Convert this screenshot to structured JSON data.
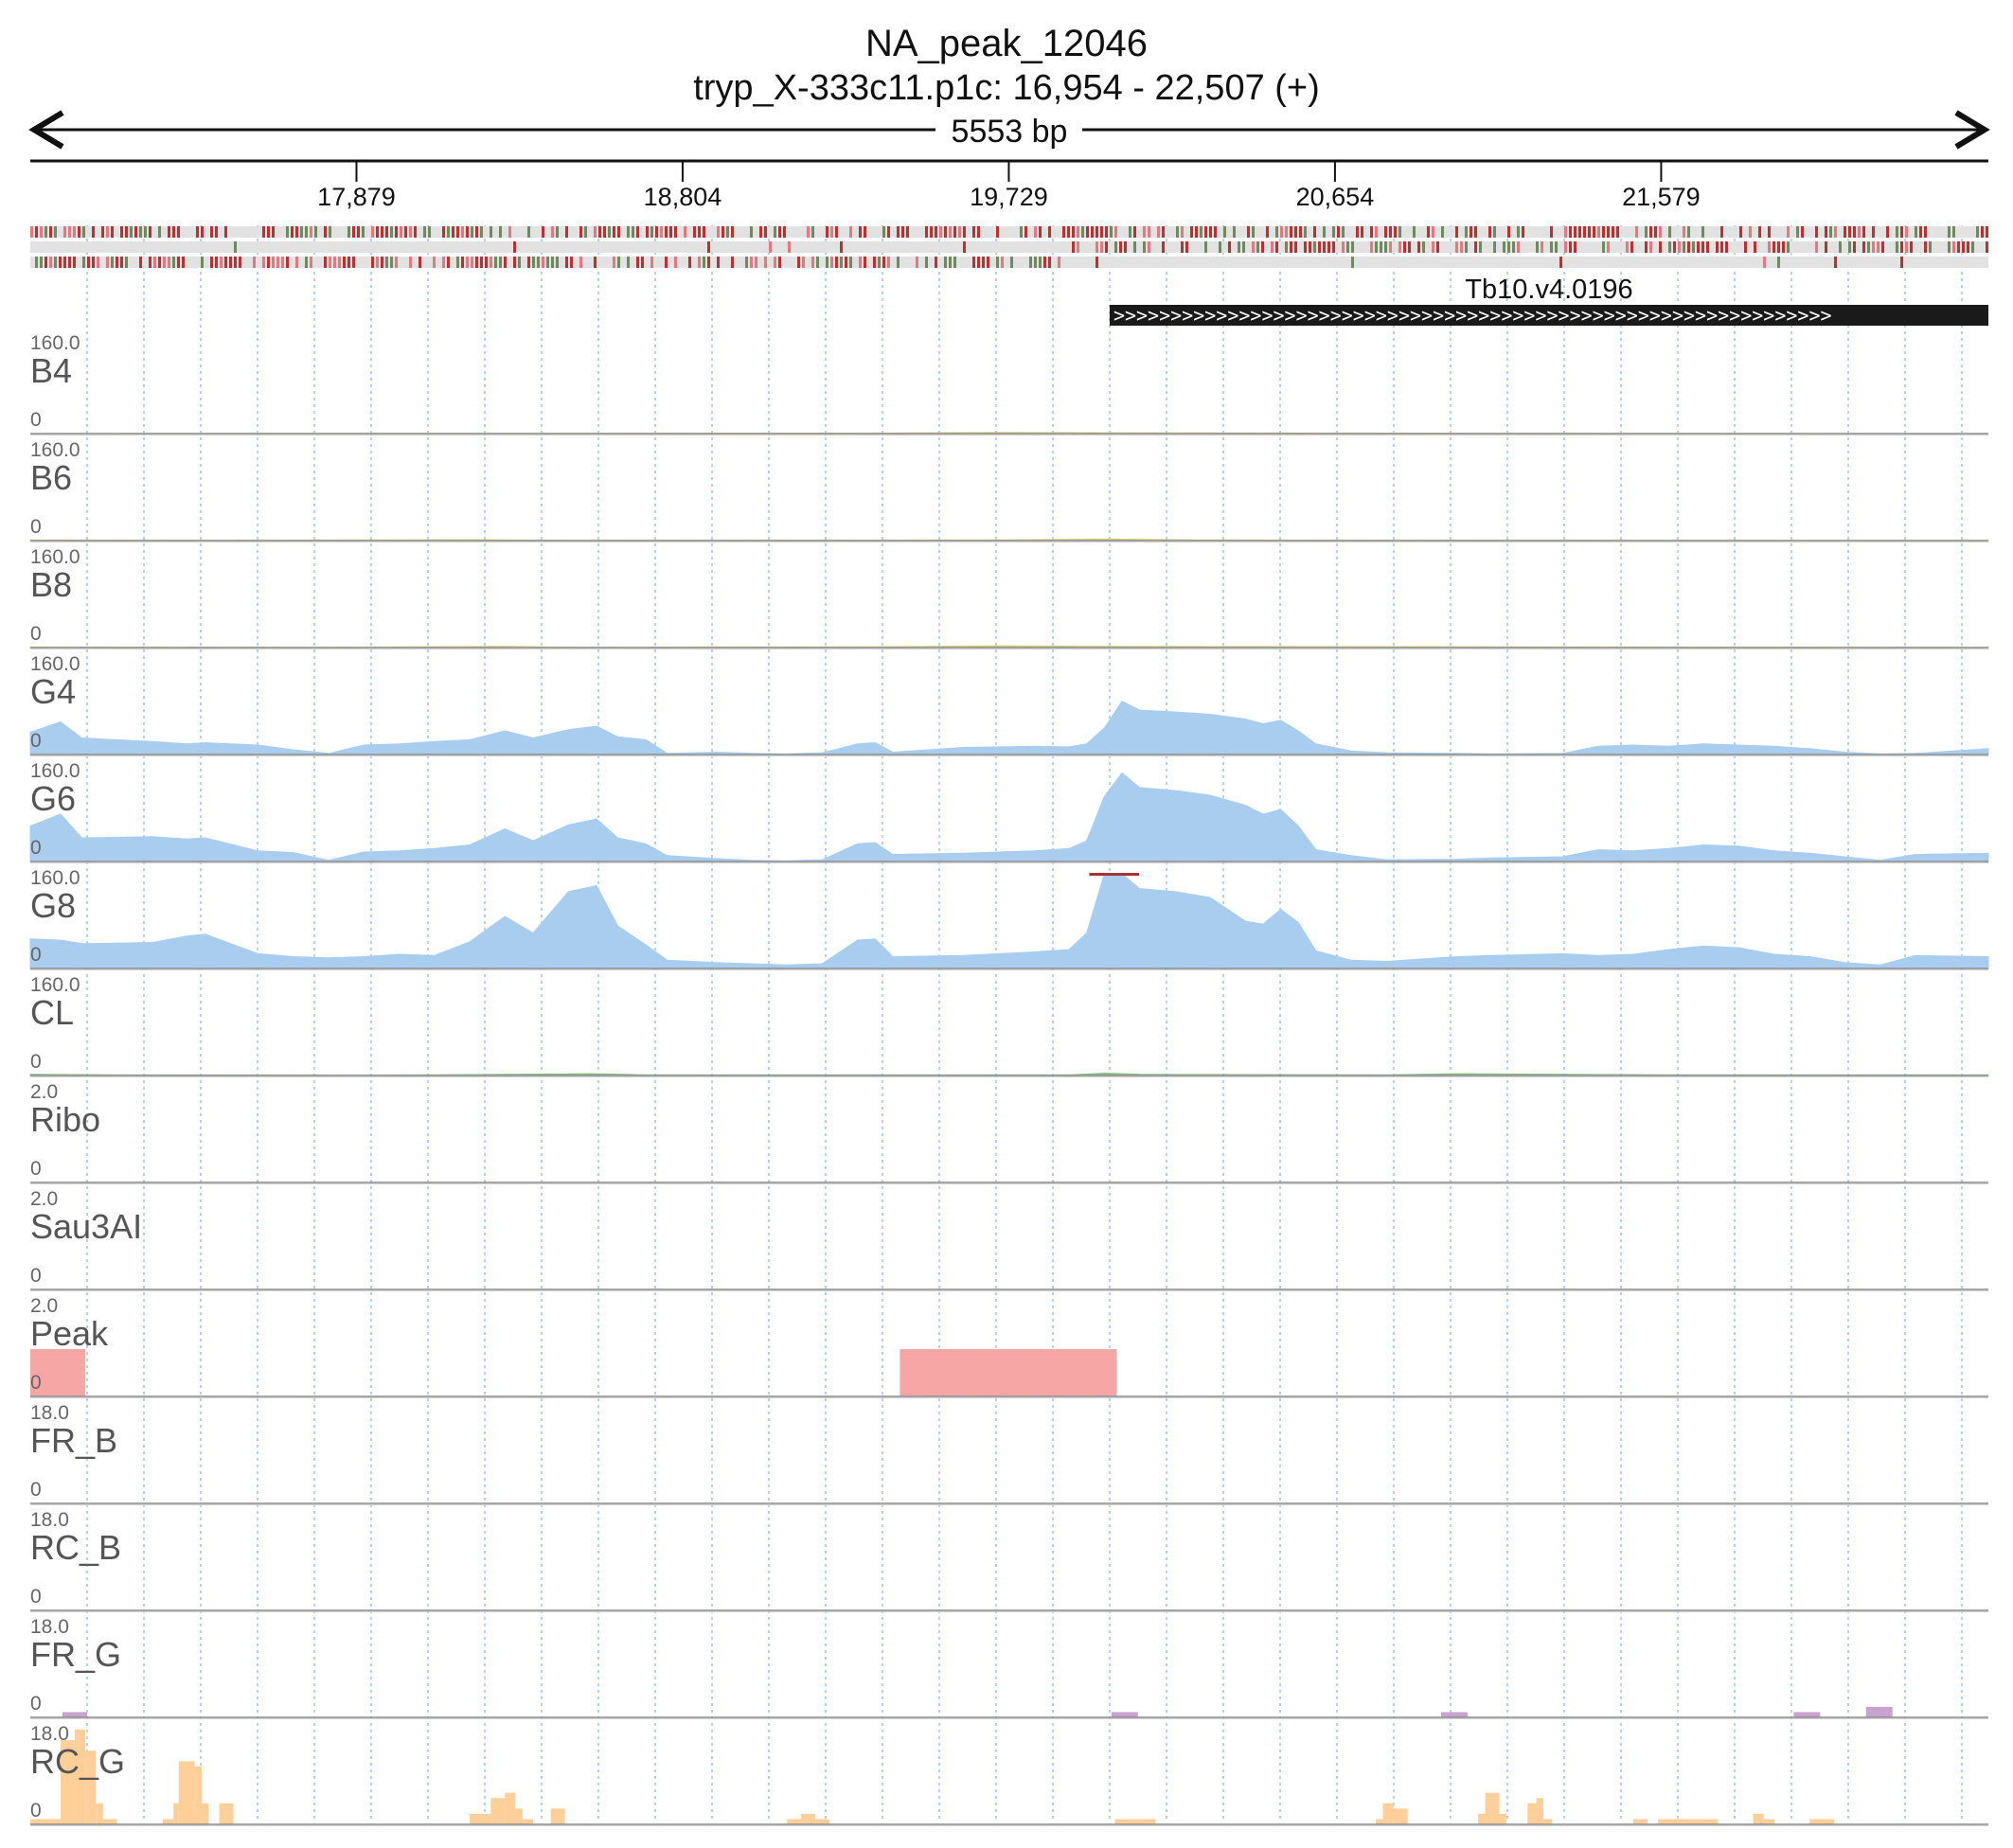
{
  "header": {
    "title": "NA_peak_12046",
    "subtitle": "tryp_X-333c11.p1c: 16,954 - 22,507 (+)",
    "span_label": "5553 bp"
  },
  "ruler": {
    "start": 16954,
    "end": 22507,
    "ticks": [
      {
        "pos": 17879,
        "label": "17,879"
      },
      {
        "pos": 18804,
        "label": "18,804"
      },
      {
        "pos": 19729,
        "label": "19,729"
      },
      {
        "pos": 20654,
        "label": "20,654"
      },
      {
        "pos": 21579,
        "label": "21,579"
      }
    ]
  },
  "gene": {
    "name": "Tb10.v4.0196",
    "start": 20015,
    "end": 22507,
    "strand": "+",
    "arrow_glyph": ">"
  },
  "colors": {
    "coverage": "#a9cdef",
    "coverage_faint_b": "#d8cf73",
    "coverage_faint_cl": "#88c088",
    "peak": "#f7a6a6",
    "fr_g": "#c9a3cf",
    "rc_g": "#ffcf9a",
    "clip_marker": "#a8323a",
    "gene": "#1a1a1a",
    "grid": "#9ec4ea",
    "frame_dark": "#b83232",
    "frame_mid": "#e07a80",
    "frame_green": "#6f8a5e"
  },
  "chart_data": {
    "type": "area",
    "x_range": [
      16954,
      22507
    ],
    "tracks": [
      {
        "name": "B4",
        "max_label": "160.0",
        "min_label": "0",
        "max": 160,
        "color_key": "coverage_faint_b",
        "points": [
          [
            16954,
            0
          ],
          [
            17800,
            0.5
          ],
          [
            18300,
            0.5
          ],
          [
            19400,
            1
          ],
          [
            19700,
            2
          ],
          [
            20000,
            1.5
          ],
          [
            21500,
            0.5
          ],
          [
            22507,
            0
          ]
        ]
      },
      {
        "name": "B6",
        "max_label": "160.0",
        "min_label": "0",
        "max": 160,
        "color_key": "coverage_faint_b",
        "points": [
          [
            16954,
            1
          ],
          [
            17500,
            0.5
          ],
          [
            18200,
            1.5
          ],
          [
            18500,
            0.5
          ],
          [
            19700,
            1
          ],
          [
            20000,
            2.5
          ],
          [
            20300,
            1
          ],
          [
            21500,
            0.5
          ],
          [
            22507,
            0.5
          ]
        ]
      },
      {
        "name": "B8",
        "max_label": "160.0",
        "min_label": "0",
        "max": 160,
        "color_key": "coverage_faint_b",
        "points": [
          [
            16954,
            1
          ],
          [
            17800,
            0.5
          ],
          [
            18300,
            2
          ],
          [
            18500,
            0.5
          ],
          [
            19400,
            1.5
          ],
          [
            19700,
            3
          ],
          [
            20000,
            2
          ],
          [
            21500,
            1
          ],
          [
            22507,
            0.5
          ]
        ]
      },
      {
        "name": "G4",
        "max_label": "160.0",
        "min_label": "0",
        "max": 160,
        "color_key": "coverage",
        "points": [
          [
            16954,
            38
          ],
          [
            17040,
            55
          ],
          [
            17100,
            28
          ],
          [
            17300,
            22
          ],
          [
            17400,
            18
          ],
          [
            17450,
            20
          ],
          [
            17600,
            16
          ],
          [
            17700,
            8
          ],
          [
            17800,
            2
          ],
          [
            17900,
            16
          ],
          [
            18000,
            18
          ],
          [
            18100,
            22
          ],
          [
            18200,
            25
          ],
          [
            18300,
            40
          ],
          [
            18380,
            28
          ],
          [
            18480,
            42
          ],
          [
            18560,
            48
          ],
          [
            18620,
            30
          ],
          [
            18700,
            25
          ],
          [
            18760,
            2
          ],
          [
            18900,
            4
          ],
          [
            19000,
            2
          ],
          [
            19100,
            1
          ],
          [
            19200,
            3
          ],
          [
            19300,
            18
          ],
          [
            19350,
            20
          ],
          [
            19400,
            4
          ],
          [
            19600,
            12
          ],
          [
            19800,
            14
          ],
          [
            19900,
            13
          ],
          [
            19950,
            18
          ],
          [
            20000,
            45
          ],
          [
            20050,
            90
          ],
          [
            20100,
            75
          ],
          [
            20200,
            72
          ],
          [
            20300,
            68
          ],
          [
            20400,
            60
          ],
          [
            20450,
            52
          ],
          [
            20500,
            58
          ],
          [
            20550,
            40
          ],
          [
            20600,
            18
          ],
          [
            20700,
            6
          ],
          [
            20800,
            3
          ],
          [
            21000,
            2
          ],
          [
            21100,
            1
          ],
          [
            21300,
            2
          ],
          [
            21400,
            14
          ],
          [
            21500,
            16
          ],
          [
            21600,
            14
          ],
          [
            21700,
            18
          ],
          [
            21800,
            16
          ],
          [
            21900,
            14
          ],
          [
            22000,
            10
          ],
          [
            22100,
            4
          ],
          [
            22200,
            1
          ],
          [
            22300,
            2
          ],
          [
            22507,
            10
          ]
        ]
      },
      {
        "name": "G6",
        "max_label": "160.0",
        "min_label": "0",
        "max": 160,
        "color_key": "coverage",
        "points": [
          [
            16954,
            60
          ],
          [
            17040,
            80
          ],
          [
            17100,
            40
          ],
          [
            17300,
            42
          ],
          [
            17400,
            38
          ],
          [
            17450,
            40
          ],
          [
            17600,
            18
          ],
          [
            17700,
            15
          ],
          [
            17800,
            2
          ],
          [
            17900,
            16
          ],
          [
            18000,
            18
          ],
          [
            18100,
            22
          ],
          [
            18200,
            28
          ],
          [
            18300,
            55
          ],
          [
            18380,
            35
          ],
          [
            18480,
            62
          ],
          [
            18560,
            72
          ],
          [
            18620,
            40
          ],
          [
            18700,
            30
          ],
          [
            18760,
            10
          ],
          [
            18900,
            5
          ],
          [
            19000,
            2
          ],
          [
            19100,
            1
          ],
          [
            19200,
            3
          ],
          [
            19300,
            30
          ],
          [
            19350,
            32
          ],
          [
            19400,
            12
          ],
          [
            19600,
            14
          ],
          [
            19800,
            18
          ],
          [
            19900,
            22
          ],
          [
            19950,
            35
          ],
          [
            20000,
            110
          ],
          [
            20050,
            150
          ],
          [
            20100,
            125
          ],
          [
            20200,
            120
          ],
          [
            20300,
            112
          ],
          [
            20400,
            95
          ],
          [
            20450,
            80
          ],
          [
            20500,
            88
          ],
          [
            20550,
            60
          ],
          [
            20600,
            20
          ],
          [
            20700,
            10
          ],
          [
            20800,
            3
          ],
          [
            21000,
            4
          ],
          [
            21100,
            6
          ],
          [
            21300,
            8
          ],
          [
            21400,
            20
          ],
          [
            21500,
            18
          ],
          [
            21600,
            22
          ],
          [
            21700,
            28
          ],
          [
            21800,
            26
          ],
          [
            21900,
            18
          ],
          [
            22000,
            14
          ],
          [
            22100,
            8
          ],
          [
            22200,
            2
          ],
          [
            22300,
            12
          ],
          [
            22507,
            14
          ]
        ]
      },
      {
        "name": "G8",
        "max_label": "160.0",
        "min_label": "0",
        "max": 160,
        "color_key": "coverage",
        "points": [
          [
            16954,
            50
          ],
          [
            17040,
            48
          ],
          [
            17100,
            42
          ],
          [
            17300,
            44
          ],
          [
            17400,
            55
          ],
          [
            17450,
            58
          ],
          [
            17600,
            25
          ],
          [
            17700,
            20
          ],
          [
            17800,
            18
          ],
          [
            17900,
            20
          ],
          [
            18000,
            24
          ],
          [
            18100,
            22
          ],
          [
            18200,
            45
          ],
          [
            18300,
            88
          ],
          [
            18380,
            60
          ],
          [
            18480,
            130
          ],
          [
            18560,
            140
          ],
          [
            18620,
            72
          ],
          [
            18700,
            40
          ],
          [
            18760,
            14
          ],
          [
            18900,
            10
          ],
          [
            19000,
            8
          ],
          [
            19100,
            6
          ],
          [
            19200,
            8
          ],
          [
            19300,
            48
          ],
          [
            19350,
            50
          ],
          [
            19400,
            20
          ],
          [
            19600,
            22
          ],
          [
            19800,
            28
          ],
          [
            19900,
            32
          ],
          [
            19950,
            60
          ],
          [
            20000,
            160
          ],
          [
            20050,
            160
          ],
          [
            20100,
            135
          ],
          [
            20200,
            130
          ],
          [
            20300,
            120
          ],
          [
            20400,
            80
          ],
          [
            20450,
            75
          ],
          [
            20500,
            100
          ],
          [
            20550,
            78
          ],
          [
            20600,
            30
          ],
          [
            20700,
            14
          ],
          [
            20800,
            12
          ],
          [
            21000,
            20
          ],
          [
            21100,
            22
          ],
          [
            21300,
            25
          ],
          [
            21400,
            22
          ],
          [
            21500,
            24
          ],
          [
            21600,
            32
          ],
          [
            21700,
            38
          ],
          [
            21800,
            35
          ],
          [
            21900,
            24
          ],
          [
            22000,
            20
          ],
          [
            22100,
            10
          ],
          [
            22200,
            6
          ],
          [
            22300,
            22
          ],
          [
            22507,
            20
          ]
        ]
      },
      {
        "name": "CL",
        "max_label": "160.0",
        "min_label": "0",
        "max": 160,
        "color_key": "coverage_faint_cl",
        "points": [
          [
            16954,
            2
          ],
          [
            17200,
            1
          ],
          [
            17900,
            0.5
          ],
          [
            18300,
            2
          ],
          [
            18550,
            3
          ],
          [
            18700,
            1
          ],
          [
            19900,
            1
          ],
          [
            20000,
            4
          ],
          [
            20100,
            2
          ],
          [
            20800,
            1
          ],
          [
            21000,
            3
          ],
          [
            21300,
            2
          ],
          [
            21600,
            1
          ],
          [
            22507,
            1
          ]
        ]
      },
      {
        "name": "Ribo",
        "max_label": "2.0",
        "min_label": "0",
        "max": 2,
        "color_key": "coverage",
        "points": []
      },
      {
        "name": "Sau3AI",
        "max_label": "2.0",
        "min_label": "0",
        "max": 2,
        "color_key": "coverage",
        "points": []
      },
      {
        "name": "Peak",
        "max_label": "2.0",
        "min_label": "0",
        "max": 2,
        "color_key": "peak",
        "intervals": [
          [
            16954,
            17110,
            1
          ],
          [
            19420,
            20035,
            1
          ]
        ]
      },
      {
        "name": "FR_B",
        "max_label": "18.0",
        "min_label": "0",
        "max": 18,
        "color_key": "fr_g",
        "intervals": []
      },
      {
        "name": "RC_B",
        "max_label": "18.0",
        "min_label": "0",
        "max": 18,
        "color_key": "fr_g",
        "intervals": []
      },
      {
        "name": "FR_G",
        "max_label": "18.0",
        "min_label": "0",
        "max": 18,
        "color_key": "fr_g",
        "intervals": [
          [
            17045,
            17115,
            1
          ],
          [
            20020,
            20095,
            1
          ],
          [
            20955,
            21030,
            1
          ],
          [
            21955,
            22030,
            1
          ],
          [
            22160,
            22235,
            2
          ]
        ]
      },
      {
        "name": "RC_G",
        "max_label": "18.0",
        "min_label": "0",
        "max": 18,
        "color_key": "rc_g",
        "intervals": [
          [
            16954,
            17040,
            1
          ],
          [
            17040,
            17080,
            16
          ],
          [
            17080,
            17110,
            18
          ],
          [
            17110,
            17140,
            14
          ],
          [
            17140,
            17160,
            4
          ],
          [
            17160,
            17200,
            1
          ],
          [
            17330,
            17360,
            1
          ],
          [
            17360,
            17375,
            4
          ],
          [
            17375,
            17420,
            12
          ],
          [
            17420,
            17440,
            11
          ],
          [
            17440,
            17460,
            4
          ],
          [
            17490,
            17530,
            4
          ],
          [
            18200,
            18260,
            2
          ],
          [
            18260,
            18300,
            5
          ],
          [
            18300,
            18330,
            6
          ],
          [
            18330,
            18350,
            3
          ],
          [
            18350,
            18380,
            1
          ],
          [
            18430,
            18470,
            3
          ],
          [
            19100,
            19140,
            1
          ],
          [
            19140,
            19180,
            2
          ],
          [
            19180,
            19220,
            1
          ],
          [
            20030,
            20145,
            1
          ],
          [
            20770,
            20790,
            1
          ],
          [
            20790,
            20820,
            4
          ],
          [
            20820,
            20860,
            3
          ],
          [
            21060,
            21080,
            2
          ],
          [
            21080,
            21120,
            6
          ],
          [
            21120,
            21140,
            2
          ],
          [
            21200,
            21225,
            4
          ],
          [
            21225,
            21245,
            5
          ],
          [
            21245,
            21270,
            1
          ],
          [
            21500,
            21540,
            1
          ],
          [
            21570,
            21740,
            1
          ],
          [
            21840,
            21870,
            2
          ],
          [
            21870,
            21900,
            1
          ],
          [
            22000,
            22070,
            1
          ]
        ]
      }
    ]
  }
}
